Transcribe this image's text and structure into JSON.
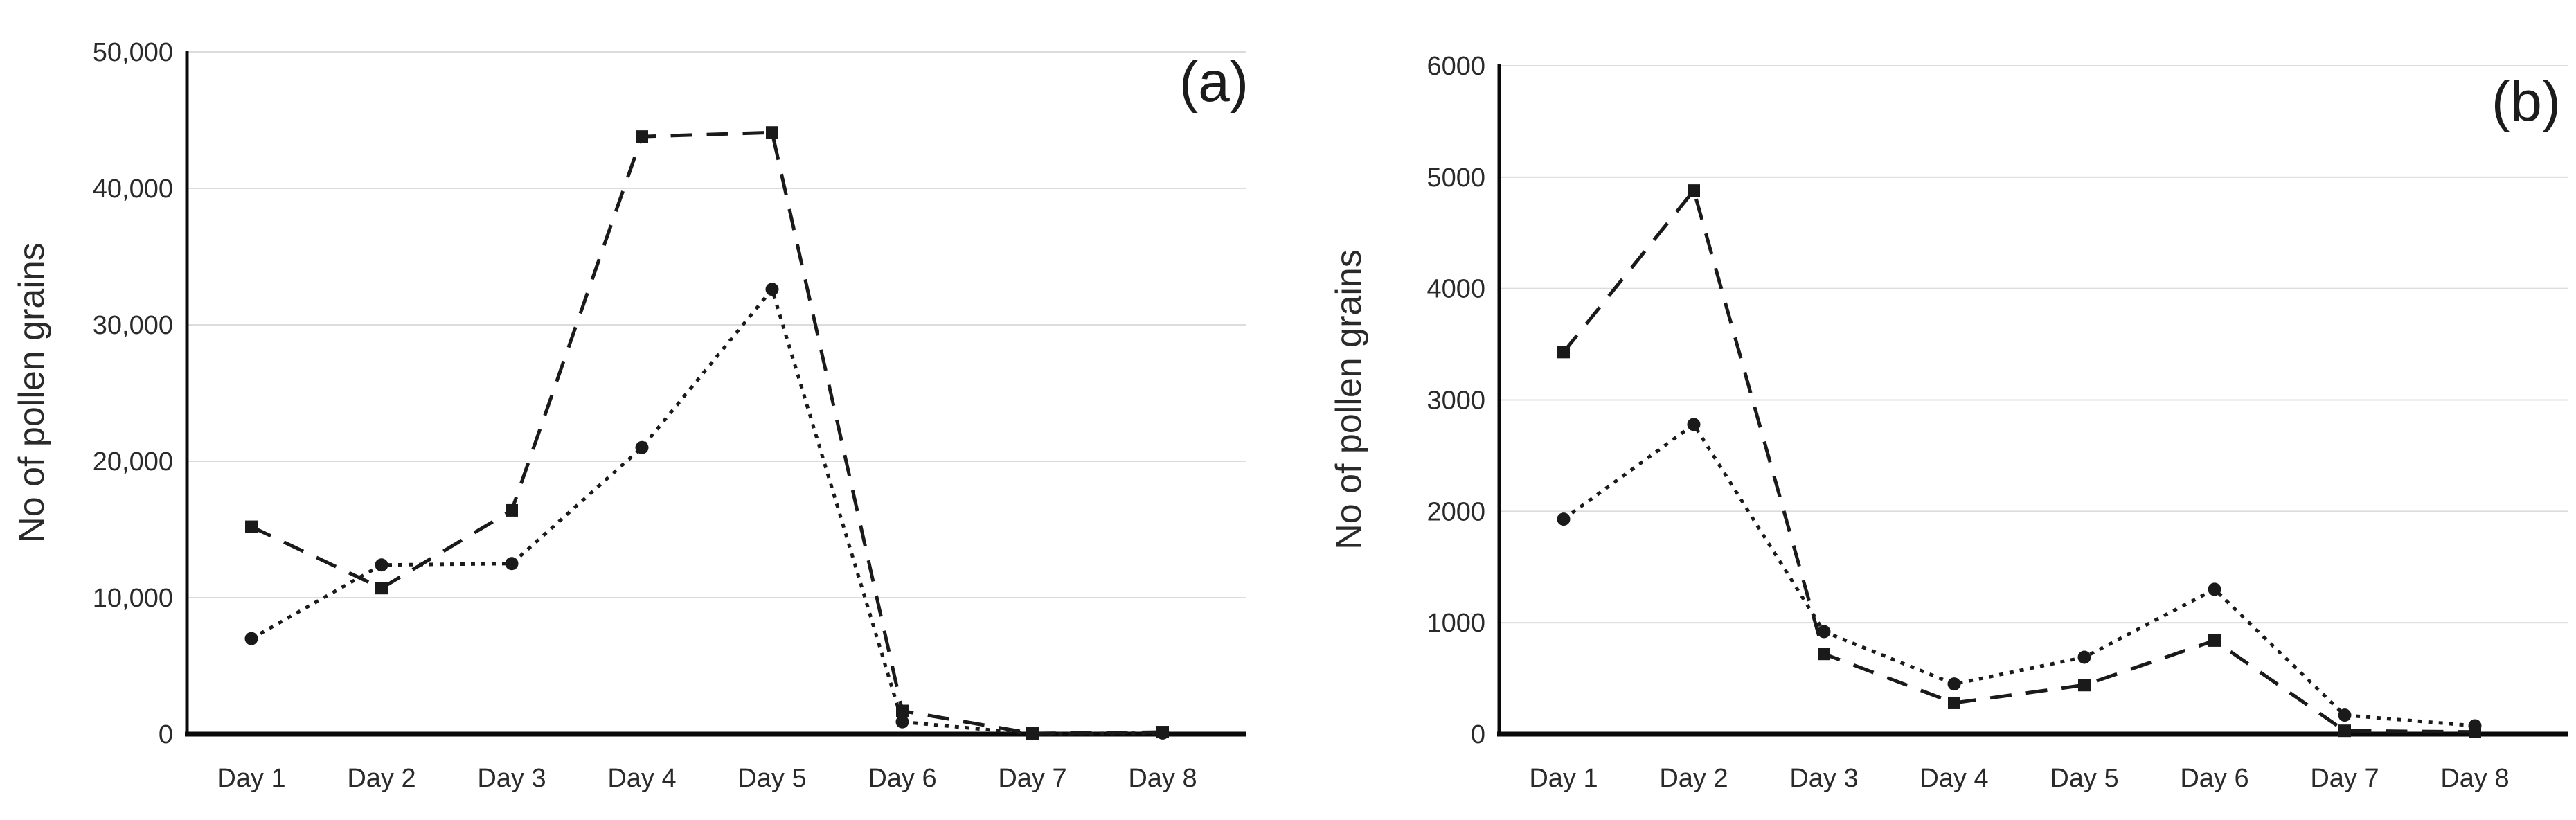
{
  "figure": {
    "background": "#ffffff",
    "text_color": "#2a2a2a",
    "axis_color": "#0a0a0a",
    "grid_color": "#dcdcdc",
    "series_color": "#1a1a1a"
  },
  "chart_data": [
    {
      "type": "line",
      "panel_label": "(a)",
      "ylabel": "No of pollen grains",
      "xlabel": "",
      "categories": [
        "Day 1",
        "Day 2",
        "Day 3",
        "Day 4",
        "Day 5",
        "Day 6",
        "Day 7",
        "Day 8"
      ],
      "ylim": [
        0,
        50000
      ],
      "yticks": [
        0,
        10000,
        20000,
        30000,
        40000,
        50000
      ],
      "ytick_labels": [
        "0",
        "10,000",
        "20,000",
        "30,000",
        "40,000",
        "50,000"
      ],
      "grid": true,
      "legend": "none",
      "series": [
        {
          "name": "square-dashed-series",
          "marker": "square",
          "line": "dashed",
          "values": [
            15200,
            10700,
            16400,
            43800,
            44100,
            1700,
            50,
            150
          ]
        },
        {
          "name": "circle-dotted-series",
          "marker": "circle",
          "line": "dotted",
          "values": [
            7000,
            12400,
            12500,
            21000,
            32600,
            900,
            30,
            80
          ]
        }
      ]
    },
    {
      "type": "line",
      "panel_label": "(b)",
      "ylabel": "No of pollen grains",
      "xlabel": "",
      "categories": [
        "Day 1",
        "Day 2",
        "Day 3",
        "Day 4",
        "Day 5",
        "Day 6",
        "Day 7",
        "Day 8"
      ],
      "ylim": [
        0,
        6000
      ],
      "yticks": [
        0,
        1000,
        2000,
        3000,
        4000,
        5000,
        6000
      ],
      "ytick_labels": [
        "0",
        "1000",
        "2000",
        "3000",
        "4000",
        "5000",
        "6000"
      ],
      "grid": true,
      "legend": "none",
      "series": [
        {
          "name": "square-dashed-series",
          "marker": "square",
          "line": "dashed",
          "values": [
            3430,
            4880,
            720,
            280,
            440,
            840,
            30,
            20
          ]
        },
        {
          "name": "circle-dotted-series",
          "marker": "circle",
          "line": "dotted",
          "values": [
            1930,
            2780,
            920,
            450,
            690,
            1300,
            170,
            75
          ]
        }
      ]
    }
  ]
}
